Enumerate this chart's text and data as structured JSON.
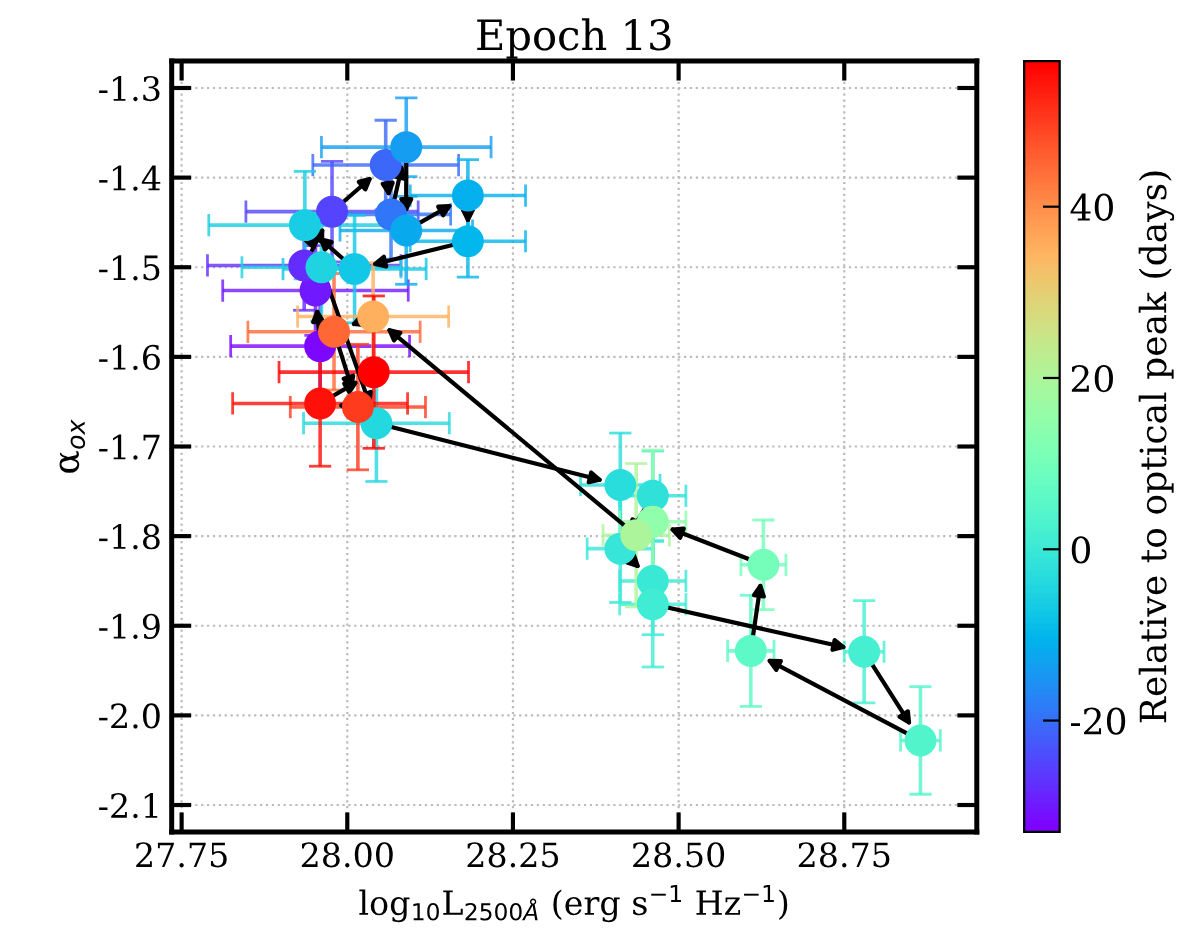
{
  "chart_data": {
    "type": "scatter",
    "title": "Epoch 13",
    "xlabel": "log$_{10}$L$_{2500Å}$ (erg s$^{−1}$ Hz$^{−1}$)",
    "ylabel": "α$_{ox}$",
    "clabel": "Relative to optical peak (days)",
    "x": [
      27.959,
      27.952,
      27.935,
      27.977,
      28.058,
      28.066,
      28.089,
      28.089,
      28.182,
      28.182,
      28.011,
      27.936,
      27.961,
      28.044,
      28.412,
      28.461,
      28.412,
      28.461,
      28.461,
      28.78,
      28.865,
      28.609,
      28.628,
      28.461,
      28.436,
      28.039,
      27.98,
      28.016,
      27.959,
      28.04
    ],
    "values": [
      -1.588,
      -1.526,
      -1.498,
      -1.438,
      -1.386,
      -1.441,
      -1.366,
      -1.459,
      -1.42,
      -1.471,
      -1.502,
      -1.453,
      -1.5,
      -1.674,
      -1.743,
      -1.755,
      -1.814,
      -1.85,
      -1.876,
      -1.929,
      -2.028,
      -1.928,
      -1.832,
      -1.784,
      -1.799,
      -1.555,
      -1.572,
      -1.656,
      -1.652,
      -1.617
    ],
    "cvalues": [
      -32,
      -30,
      -28,
      -25,
      -21,
      -19,
      -14,
      -12,
      -11,
      -10,
      -7,
      -6,
      -5,
      -4,
      -3,
      -2,
      -1,
      0,
      1,
      2,
      4,
      6,
      10,
      15,
      20,
      35,
      45,
      50,
      55,
      57
    ],
    "xerrors": [
      0.135,
      0.14,
      0.146,
      0.13,
      0.11,
      0.09,
      0.128,
      0.1,
      0.087,
      0.087,
      0.108,
      0.145,
      0.12,
      0.11,
      0.06,
      0.05,
      0.05,
      0.05,
      0.05,
      0.03,
      0.03,
      0.035,
      0.034,
      0.05,
      0.05,
      0.114,
      0.13,
      0.102,
      0.132,
      0.143
    ],
    "errors": [
      0.06,
      0.05,
      0.05,
      0.056,
      0.05,
      0.05,
      0.055,
      0.06,
      0.04,
      0.04,
      0.06,
      0.06,
      0.06,
      0.065,
      0.058,
      0.05,
      0.06,
      0.06,
      0.07,
      0.057,
      0.06,
      0.062,
      0.05,
      0.08,
      0.08,
      0.06,
      0.065,
      0.07,
      0.07,
      0.085
    ],
    "clim": [
      -33,
      57
    ],
    "cticks": [
      -20,
      0,
      20,
      40
    ],
    "xlim": [
      27.735,
      28.95
    ],
    "ylim": [
      -2.13,
      -1.27
    ],
    "xticks": [
      27.75,
      {
        "value": 28.0,
        "label": "28.00"
      },
      28.25,
      {
        "value": 28.5,
        "label": "28.50"
      },
      28.75
    ],
    "yticks": [
      -2.1,
      {
        "value": -2.0,
        "label": "-2.0"
      },
      -1.9,
      -1.8,
      -1.7,
      -1.6,
      -1.5,
      -1.4,
      -1.3
    ],
    "grid": true,
    "marker": "circle"
  }
}
